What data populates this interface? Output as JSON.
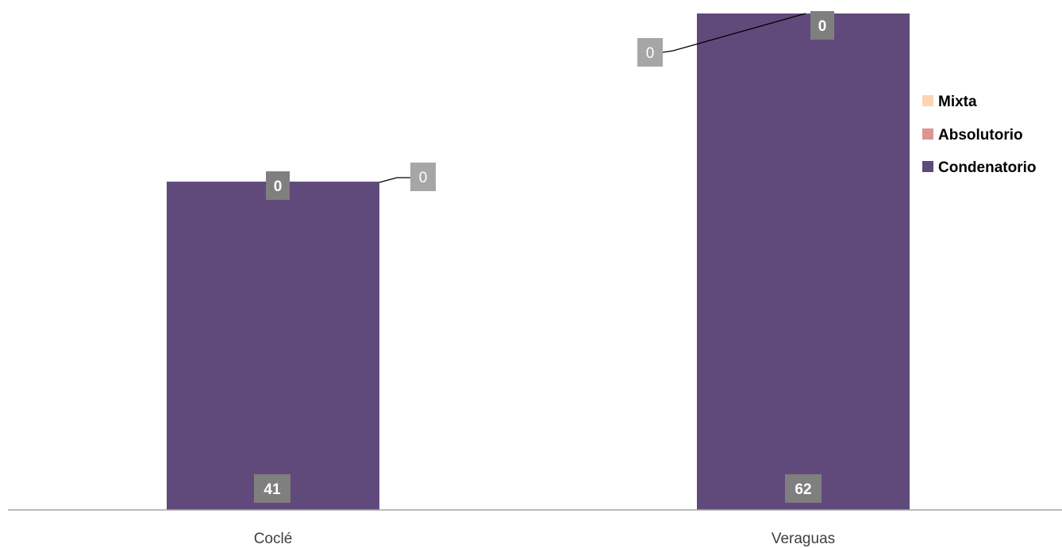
{
  "chart_data": {
    "type": "bar",
    "stacked": true,
    "categories": [
      "Coclé",
      "Veraguas"
    ],
    "series": [
      {
        "name": "Condenatorio",
        "values": [
          41,
          62
        ],
        "color": "#604a7b"
      },
      {
        "name": "Absolutorio",
        "values": [
          0,
          0
        ],
        "color": "#d99694"
      },
      {
        "name": "Mixta",
        "values": [
          0,
          0
        ],
        "color": "#fcd5b5"
      }
    ],
    "legend_order": [
      "Mixta",
      "Absolutorio",
      "Condenatorio"
    ],
    "legend_position": "right",
    "grid": false,
    "ylim": [
      0,
      65
    ],
    "data_labels": {
      "Condenatorio": [
        "41",
        "62"
      ],
      "Absolutorio": [
        "0",
        "0"
      ],
      "Mixta": [
        "0",
        "0"
      ]
    },
    "label_box_colors": {
      "dark": "#7f7f7f",
      "light": "#a6a6a6"
    }
  }
}
